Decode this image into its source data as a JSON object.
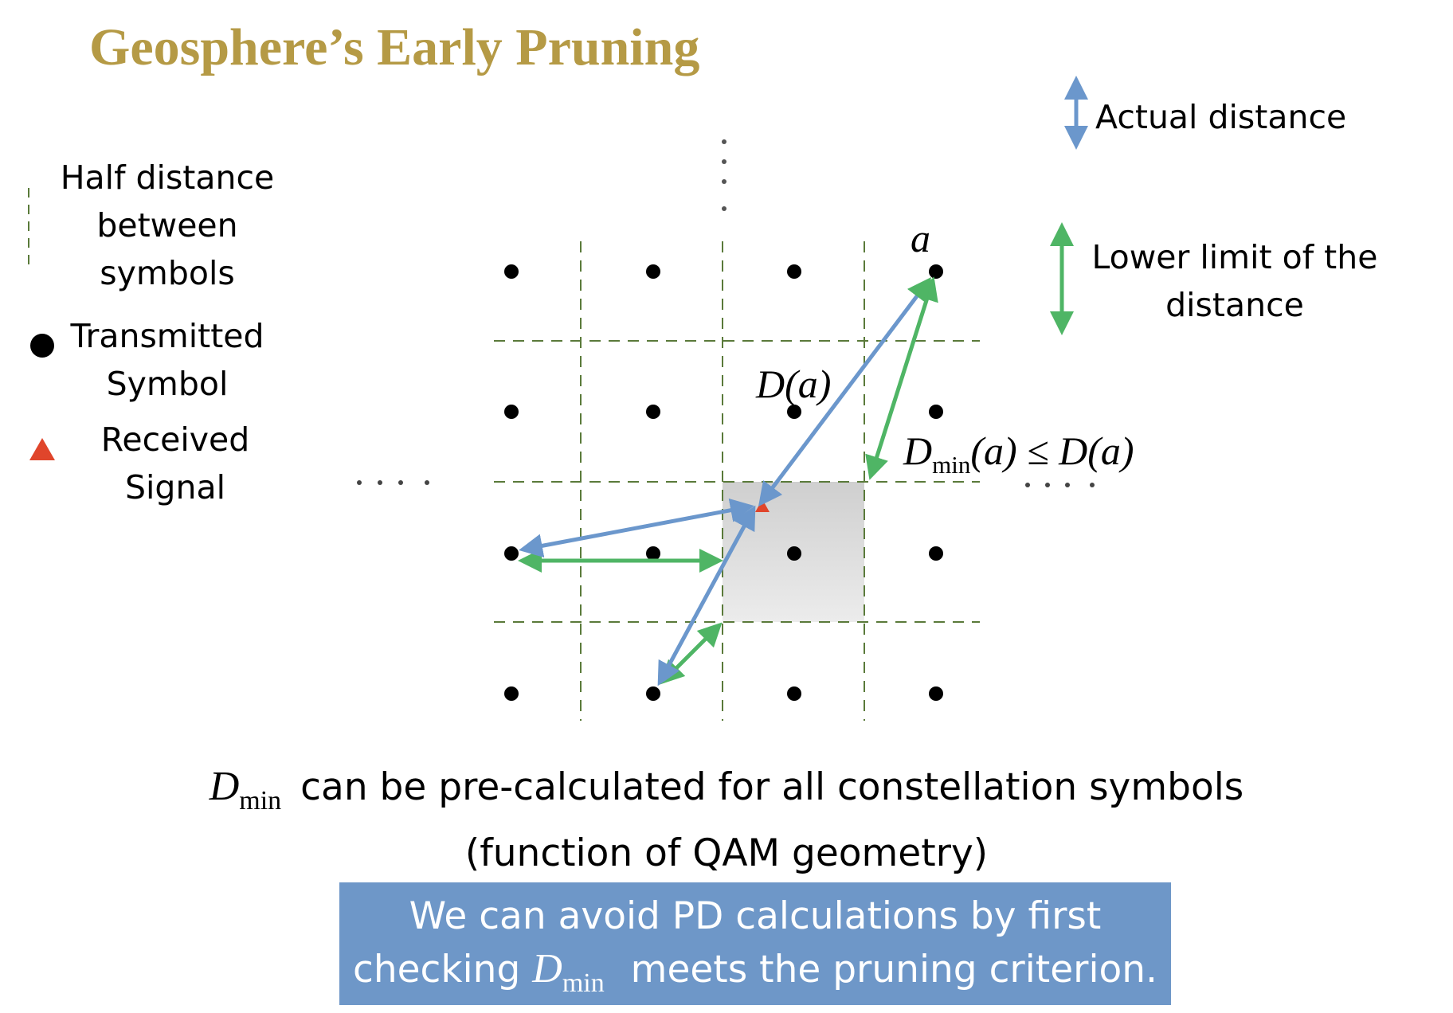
{
  "title": "Geosphere’s Early Pruning",
  "legend_left": {
    "half_distance": [
      "Half distance",
      "between",
      "symbols"
    ],
    "transmitted": [
      "Transmitted",
      "Symbol"
    ],
    "received": [
      "Received",
      "Signal"
    ]
  },
  "legend_right": {
    "actual": "Actual distance",
    "lower_limit": [
      "Lower limit of the",
      "distance"
    ]
  },
  "math_labels": {
    "a": "a",
    "d_a": "D(a)",
    "d_min_symbol": "D",
    "min_sub": "min",
    "ineq_tail": "(a) ≤ D(a)"
  },
  "ellipsis": {
    "vertical": "⋮",
    "left": "· · · ·",
    "right": "· · · ·"
  },
  "caption": {
    "line1_tail": "can be pre-calculated for all constellation symbols",
    "line2": "(function of QAM geometry)"
  },
  "callout": {
    "line1": "We can avoid PD calculations by first",
    "line2_pre": "checking",
    "line2_post": "meets  the pruning criterion."
  },
  "colors": {
    "title": "#b59a45",
    "actual_arrow": "#6b97cc",
    "lower_arrow": "#4fb565",
    "grid": "#5a7a3a",
    "received": "#e0452b",
    "callout_bg": "#6e97c8"
  },
  "icons": {
    "dot": "filled-circle-icon",
    "triangle": "triangle-icon",
    "double_arrow": "double-headed-arrow-icon"
  }
}
